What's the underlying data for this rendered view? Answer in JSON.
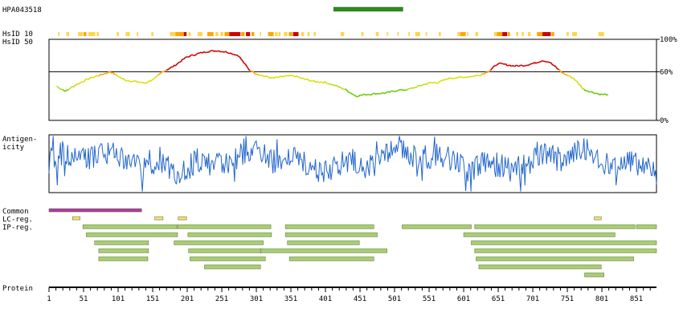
{
  "header": {
    "antigen_id": "HPA043518"
  },
  "row_labels": {
    "hsid10": "HsID 10",
    "hsid50": "HsID 50",
    "antigenicity": [
      "Antigen-",
      "icity"
    ],
    "common": "Common",
    "lc_reg": "LC-reg.",
    "ip_reg": "IP-reg.",
    "protein": "Protein"
  },
  "colors": {
    "antigen_bar": "#2e8b1e",
    "common_bar": "#b03aa4",
    "lc_bar": "#f5dc78",
    "ip_bar": "#a9cf72",
    "antigenicity_line": "#2266cc",
    "high": "#cc0000",
    "mid": "#ffa500",
    "low": "#ffd54a",
    "green": "#66cc00"
  },
  "chart_data": {
    "type": "protein-feature-map",
    "protein_length": 880,
    "x_ticks": [
      1,
      51,
      101,
      151,
      201,
      251,
      301,
      351,
      401,
      451,
      501,
      551,
      601,
      651,
      701,
      751,
      801,
      851
    ],
    "antigen_region": [
      413,
      513
    ],
    "hsid50": {
      "y_tick_labels": [
        "100%",
        "60%",
        "0%"
      ],
      "y_ticks": [
        100,
        60,
        0
      ],
      "threshold": 60,
      "ylim": [
        0,
        100
      ],
      "x": [
        12,
        25,
        40,
        60,
        75,
        90,
        100,
        110,
        125,
        140,
        155,
        165,
        180,
        190,
        200,
        215,
        230,
        245,
        260,
        275,
        290,
        300,
        310,
        325,
        340,
        355,
        370,
        385,
        400,
        415,
        430,
        445,
        460,
        475,
        490,
        505,
        520,
        535,
        550,
        565,
        580,
        595,
        610,
        625,
        640,
        650,
        660,
        675,
        690,
        705,
        715,
        725,
        735,
        745,
        760,
        775,
        790,
        800,
        810
      ],
      "y": [
        42,
        36,
        44,
        52,
        56,
        60,
        55,
        50,
        48,
        46,
        52,
        60,
        66,
        72,
        78,
        82,
        85,
        86,
        84,
        80,
        63,
        58,
        55,
        52,
        54,
        55,
        51,
        48,
        47,
        43,
        38,
        30,
        32,
        33,
        34,
        37,
        38,
        42,
        46,
        47,
        52,
        53,
        54,
        56,
        62,
        70,
        69,
        67,
        68,
        71,
        74,
        72,
        65,
        58,
        52,
        38,
        34,
        32,
        32
      ]
    },
    "hsid10_cells": [
      [
        14,
        16,
        "low"
      ],
      [
        26,
        30,
        "low"
      ],
      [
        43,
        50,
        "low"
      ],
      [
        51,
        55,
        "mid"
      ],
      [
        58,
        68,
        "low"
      ],
      [
        70,
        73,
        "low"
      ],
      [
        99,
        102,
        "low"
      ],
      [
        112,
        118,
        "low"
      ],
      [
        128,
        130,
        "low"
      ],
      [
        149,
        152,
        "low"
      ],
      [
        176,
        184,
        "low"
      ],
      [
        184,
        196,
        "mid"
      ],
      [
        196,
        200,
        "high"
      ],
      [
        203,
        206,
        "low"
      ],
      [
        216,
        223,
        "low"
      ],
      [
        230,
        239,
        "mid"
      ],
      [
        242,
        246,
        "low"
      ],
      [
        249,
        253,
        "low"
      ],
      [
        255,
        262,
        "mid"
      ],
      [
        262,
        278,
        "high"
      ],
      [
        279,
        284,
        "mid"
      ],
      [
        286,
        292,
        "high"
      ],
      [
        294,
        298,
        "mid"
      ],
      [
        306,
        308,
        "low"
      ],
      [
        318,
        326,
        "mid"
      ],
      [
        328,
        332,
        "low"
      ],
      [
        333,
        336,
        "low"
      ],
      [
        341,
        346,
        "low"
      ],
      [
        348,
        353,
        "mid"
      ],
      [
        354,
        362,
        "high"
      ],
      [
        366,
        370,
        "low"
      ],
      [
        375,
        378,
        "low"
      ],
      [
        384,
        387,
        "low"
      ],
      [
        423,
        428,
        "low"
      ],
      [
        453,
        456,
        "low"
      ],
      [
        474,
        478,
        "low"
      ],
      [
        490,
        492,
        "low"
      ],
      [
        505,
        507,
        "low"
      ],
      [
        521,
        523,
        "low"
      ],
      [
        531,
        538,
        "low"
      ],
      [
        546,
        548,
        "low"
      ],
      [
        565,
        568,
        "low"
      ],
      [
        592,
        596,
        "low"
      ],
      [
        596,
        604,
        "mid"
      ],
      [
        606,
        608,
        "low"
      ],
      [
        618,
        622,
        "low"
      ],
      [
        645,
        649,
        "low"
      ],
      [
        649,
        657,
        "mid"
      ],
      [
        657,
        664,
        "high"
      ],
      [
        665,
        668,
        "mid"
      ],
      [
        677,
        680,
        "low"
      ],
      [
        685,
        688,
        "low"
      ],
      [
        694,
        698,
        "low"
      ],
      [
        707,
        715,
        "mid"
      ],
      [
        715,
        727,
        "high"
      ],
      [
        728,
        732,
        "mid"
      ],
      [
        750,
        753,
        "low"
      ],
      [
        758,
        765,
        "low"
      ],
      [
        796,
        804,
        "low"
      ]
    ],
    "common": [
      [
        1,
        135
      ]
    ],
    "lc_reg": [
      [
        35,
        46
      ],
      [
        154,
        166
      ],
      [
        188,
        200
      ],
      [
        790,
        800
      ]
    ],
    "ip_reg": [
      [
        [
          50,
          186
        ],
        [
          187,
          322
        ],
        [
          343,
          471
        ],
        [
          512,
          612
        ],
        [
          617,
          849
        ],
        [
          851,
          880
        ]
      ],
      [
        [
          55,
          187
        ],
        [
          202,
          323
        ],
        [
          343,
          476
        ],
        [
          601,
          820
        ]
      ],
      [
        [
          67,
          145
        ],
        [
          182,
          311
        ],
        [
          346,
          450
        ],
        [
          612,
          880
        ]
      ],
      [
        [
          73,
          145
        ],
        [
          203,
          309
        ],
        [
          307,
          490
        ],
        [
          617,
          880
        ]
      ],
      [
        [
          73,
          144
        ],
        [
          205,
          314
        ],
        [
          349,
          471
        ],
        [
          619,
          847
        ]
      ],
      [
        [
          226,
          307
        ],
        [
          623,
          800
        ]
      ],
      [
        [
          776,
          804
        ]
      ]
    ]
  }
}
